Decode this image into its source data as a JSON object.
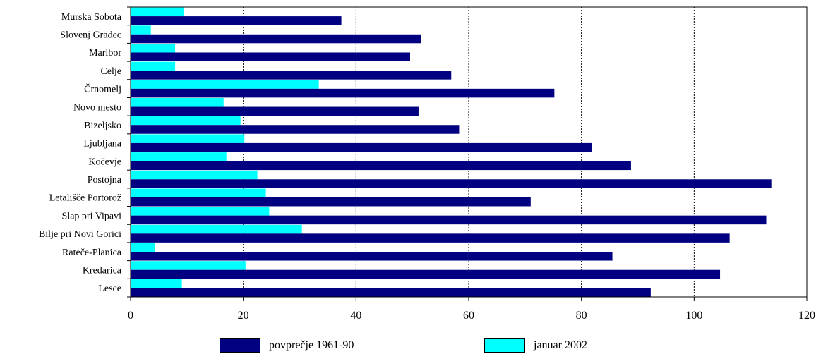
{
  "chart_data": {
    "type": "bar",
    "orientation": "horizontal",
    "categories": [
      "Murska Sobota",
      "Slovenj Gradec",
      "Maribor",
      "Celje",
      "Črnomelj",
      "Novo mesto",
      "Bizeljsko",
      "Ljubljana",
      "Kočevje",
      "Postojna",
      "Letališče Portorož",
      "Slap pri Vipavi",
      "Bilje pri Novi Gorici",
      "Rateče-Planica",
      "Kredarica",
      "Lesce"
    ],
    "series": [
      {
        "name": "januar 2002",
        "color": "#00ffff",
        "values": [
          9.4,
          3.6,
          7.9,
          7.9,
          33.4,
          16.5,
          19.5,
          20.2,
          17.0,
          22.5,
          24.0,
          24.6,
          30.4,
          4.3,
          20.4,
          9.1
        ]
      },
      {
        "name": "povprečje 1961-90",
        "color": "#000080",
        "values": [
          37.4,
          51.5,
          49.6,
          56.9,
          75.2,
          51.1,
          58.3,
          81.9,
          88.8,
          113.7,
          71.0,
          112.8,
          106.3,
          85.5,
          104.6,
          92.3
        ]
      }
    ],
    "xlim": [
      0,
      120
    ],
    "x_ticks": [
      0,
      20,
      40,
      60,
      80,
      100,
      120
    ],
    "grid": "vertical dashed",
    "legend": [
      {
        "label": "povprečje 1961-90",
        "color": "#000080"
      },
      {
        "label": "januar 2002",
        "color": "#00ffff"
      }
    ],
    "legend_position": "bottom",
    "title": "",
    "xlabel": "",
    "ylabel": ""
  }
}
